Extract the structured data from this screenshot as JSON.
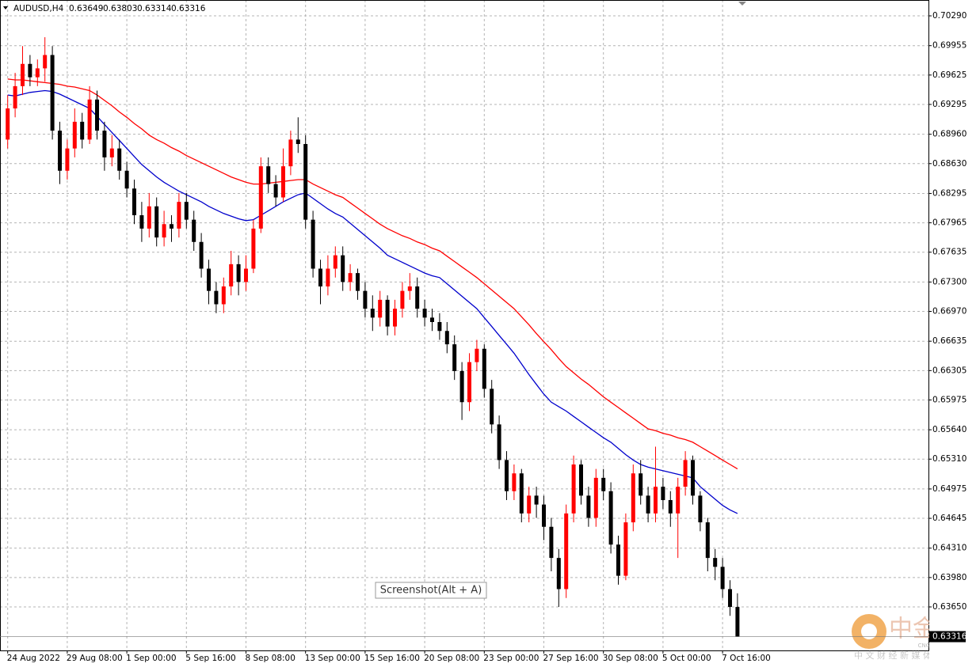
{
  "chart_data": {
    "type": "candlestick",
    "title": "AUDUSD,H4",
    "categories": [
      "24 Aug 2022",
      null,
      null,
      null,
      null,
      null,
      null,
      null,
      "29 Aug 08:00",
      null,
      null,
      null,
      null,
      null,
      null,
      null,
      "1 Sep 00:00",
      null,
      null,
      null,
      null,
      null,
      null,
      null,
      "5 Sep 16:00",
      null,
      null,
      null,
      null,
      null,
      null,
      null,
      "8 Sep 08:00",
      null,
      null,
      null,
      null,
      null,
      null,
      null,
      "13 Sep 00:00",
      null,
      null,
      null,
      null,
      null,
      null,
      null,
      "15 Sep 16:00",
      null,
      null,
      null,
      null,
      null,
      null,
      null,
      "20 Sep 08:00",
      null,
      null,
      null,
      null,
      null,
      null,
      null,
      "23 Sep 00:00",
      null,
      null,
      null,
      null,
      null,
      null,
      null,
      "27 Sep 16:00",
      null,
      null,
      null,
      null,
      null,
      null,
      null,
      "30 Sep 08:00",
      null,
      null,
      null,
      null,
      null,
      null,
      null,
      "5 Oct 00:00",
      null,
      null,
      null,
      null,
      null,
      null,
      null,
      "7 Oct 16:00",
      null,
      null
    ],
    "open": [
      0.689,
      0.6925,
      0.695,
      0.6975,
      0.696,
      0.697,
      0.6985,
      0.69,
      0.6855,
      0.688,
      0.691,
      0.689,
      0.6935,
      0.69,
      0.687,
      0.688,
      0.6855,
      0.6835,
      0.6805,
      0.679,
      0.6815,
      0.678,
      0.6795,
      0.679,
      0.682,
      0.68,
      0.6775,
      0.6745,
      0.672,
      0.6705,
      0.6725,
      0.675,
      0.673,
      0.6745,
      0.679,
      0.686,
      0.684,
      0.6825,
      0.686,
      0.689,
      0.6885,
      0.68,
      0.6745,
      0.6725,
      0.6745,
      0.676,
      0.673,
      0.674,
      0.672,
      0.67,
      0.669,
      0.671,
      0.668,
      0.67,
      0.672,
      0.6725,
      0.67,
      0.669,
      0.6685,
      0.6675,
      0.666,
      0.663,
      0.6595,
      0.664,
      0.6655,
      0.661,
      0.657,
      0.653,
      0.6495,
      0.6515,
      0.647,
      0.649,
      0.648,
      0.6455,
      0.642,
      0.6385,
      0.647,
      0.6525,
      0.649,
      0.6465,
      0.651,
      0.6495,
      0.6435,
      0.64,
      0.646,
      0.6515,
      0.649,
      0.647,
      0.65,
      0.6485,
      0.647,
      0.65,
      0.653,
      0.649,
      0.646,
      0.642,
      0.641,
      0.6385,
      0.63649
    ],
    "high": [
      0.694,
      0.6965,
      0.6995,
      0.6985,
      0.698,
      0.7005,
      0.6995,
      0.691,
      0.689,
      0.6925,
      0.692,
      0.695,
      0.6945,
      0.691,
      0.6895,
      0.689,
      0.6865,
      0.6845,
      0.682,
      0.683,
      0.6825,
      0.681,
      0.6805,
      0.683,
      0.683,
      0.681,
      0.6785,
      0.6755,
      0.673,
      0.6735,
      0.6765,
      0.676,
      0.676,
      0.68,
      0.687,
      0.687,
      0.685,
      0.688,
      0.69,
      0.6915,
      0.6895,
      0.681,
      0.6755,
      0.676,
      0.677,
      0.677,
      0.675,
      0.6745,
      0.673,
      0.6715,
      0.672,
      0.6715,
      0.671,
      0.673,
      0.674,
      0.6735,
      0.671,
      0.67,
      0.6695,
      0.6685,
      0.667,
      0.664,
      0.665,
      0.6665,
      0.666,
      0.662,
      0.658,
      0.654,
      0.6525,
      0.652,
      0.65,
      0.65,
      0.649,
      0.6465,
      0.643,
      0.648,
      0.6535,
      0.653,
      0.65,
      0.652,
      0.652,
      0.6505,
      0.6445,
      0.647,
      0.6525,
      0.653,
      0.65,
      0.6545,
      0.651,
      0.6495,
      0.651,
      0.654,
      0.6535,
      0.6495,
      0.6465,
      0.643,
      0.642,
      0.6395,
      0.63803
    ],
    "low": [
      0.688,
      0.6915,
      0.694,
      0.695,
      0.695,
      0.6955,
      0.689,
      0.684,
      0.6845,
      0.687,
      0.688,
      0.6885,
      0.689,
      0.6855,
      0.686,
      0.6845,
      0.6825,
      0.6795,
      0.6775,
      0.678,
      0.677,
      0.677,
      0.6775,
      0.678,
      0.679,
      0.6765,
      0.6735,
      0.6705,
      0.6695,
      0.6695,
      0.6715,
      0.6715,
      0.672,
      0.674,
      0.6785,
      0.683,
      0.6815,
      0.682,
      0.685,
      0.6875,
      0.679,
      0.6735,
      0.6705,
      0.6715,
      0.6735,
      0.672,
      0.672,
      0.671,
      0.669,
      0.6675,
      0.668,
      0.667,
      0.667,
      0.669,
      0.671,
      0.669,
      0.668,
      0.6675,
      0.6665,
      0.665,
      0.662,
      0.6575,
      0.6585,
      0.663,
      0.66,
      0.656,
      0.652,
      0.6485,
      0.6485,
      0.646,
      0.646,
      0.6465,
      0.644,
      0.6405,
      0.6365,
      0.6375,
      0.646,
      0.648,
      0.6455,
      0.6455,
      0.6485,
      0.6425,
      0.639,
      0.6395,
      0.645,
      0.648,
      0.646,
      0.646,
      0.6475,
      0.6455,
      0.642,
      0.649,
      0.648,
      0.645,
      0.6405,
      0.6395,
      0.6375,
      0.6355,
      0.63314
    ],
    "close": [
      0.6925,
      0.695,
      0.6975,
      0.696,
      0.697,
      0.6985,
      0.69,
      0.6855,
      0.688,
      0.691,
      0.689,
      0.6935,
      0.69,
      0.687,
      0.688,
      0.6855,
      0.6835,
      0.6805,
      0.679,
      0.6815,
      0.678,
      0.6795,
      0.679,
      0.682,
      0.68,
      0.6775,
      0.6745,
      0.672,
      0.6705,
      0.6725,
      0.675,
      0.673,
      0.6745,
      0.679,
      0.686,
      0.684,
      0.6825,
      0.686,
      0.689,
      0.6885,
      0.68,
      0.6745,
      0.6725,
      0.6745,
      0.676,
      0.673,
      0.674,
      0.672,
      0.67,
      0.669,
      0.671,
      0.668,
      0.67,
      0.672,
      0.6725,
      0.67,
      0.669,
      0.6685,
      0.6675,
      0.666,
      0.663,
      0.6595,
      0.664,
      0.6655,
      0.661,
      0.657,
      0.653,
      0.6495,
      0.6515,
      0.647,
      0.649,
      0.648,
      0.6455,
      0.642,
      0.6385,
      0.647,
      0.6525,
      0.649,
      0.6465,
      0.651,
      0.6495,
      0.6435,
      0.64,
      0.646,
      0.6515,
      0.649,
      0.647,
      0.65,
      0.6485,
      0.647,
      0.65,
      0.653,
      0.649,
      0.646,
      0.642,
      0.641,
      0.6385,
      0.6365,
      0.63316
    ],
    "up_color": "#ff0000",
    "down_color": "#000000",
    "lines": [
      {
        "color": "#ff0000",
        "values": [
          0.6958,
          0.6957,
          0.6957,
          0.6956,
          0.6955,
          0.6954,
          0.6953,
          0.6952,
          0.695,
          0.6949,
          0.6947,
          0.6945,
          0.694,
          0.6934,
          0.6928,
          0.6921,
          0.6915,
          0.6908,
          0.6902,
          0.6895,
          0.689,
          0.6886,
          0.6881,
          0.6877,
          0.6872,
          0.6868,
          0.6864,
          0.686,
          0.6856,
          0.6852,
          0.6848,
          0.6845,
          0.6842,
          0.684,
          0.684,
          0.6841,
          0.6842,
          0.6843,
          0.6844,
          0.6845,
          0.6845,
          0.684,
          0.6836,
          0.6832,
          0.6828,
          0.6825,
          0.6819,
          0.6813,
          0.6807,
          0.6801,
          0.6795,
          0.679,
          0.6786,
          0.6782,
          0.6779,
          0.6775,
          0.6772,
          0.6768,
          0.6765,
          0.6759,
          0.6753,
          0.6747,
          0.6741,
          0.6735,
          0.6728,
          0.6721,
          0.6714,
          0.6707,
          0.67,
          0.6691,
          0.6682,
          0.6672,
          0.6663,
          0.6654,
          0.6644,
          0.6635,
          0.6628,
          0.6621,
          0.6615,
          0.6608,
          0.6601,
          0.6595,
          0.6589,
          0.6583,
          0.6577,
          0.6571,
          0.6565,
          0.6563,
          0.656,
          0.6558,
          0.6555,
          0.6553,
          0.655,
          0.6545,
          0.654,
          0.6535,
          0.653,
          0.6525,
          0.652
        ]
      },
      {
        "color": "#0000cc",
        "values": [
          0.694,
          0.6939,
          0.6941,
          0.6943,
          0.6944,
          0.6945,
          0.6944,
          0.6941,
          0.6937,
          0.6933,
          0.6929,
          0.6925,
          0.6916,
          0.6907,
          0.6898,
          0.6889,
          0.688,
          0.6871,
          0.6862,
          0.6855,
          0.6848,
          0.6842,
          0.6837,
          0.6832,
          0.6828,
          0.6824,
          0.682,
          0.6815,
          0.6811,
          0.6807,
          0.6804,
          0.6801,
          0.6799,
          0.68,
          0.6805,
          0.681,
          0.6815,
          0.682,
          0.6824,
          0.6828,
          0.683,
          0.6824,
          0.6818,
          0.6812,
          0.6807,
          0.6803,
          0.6796,
          0.6789,
          0.6782,
          0.6775,
          0.6768,
          0.676,
          0.6756,
          0.6752,
          0.6748,
          0.6744,
          0.674,
          0.6737,
          0.6735,
          0.6728,
          0.6721,
          0.6714,
          0.6707,
          0.67,
          0.669,
          0.668,
          0.667,
          0.666,
          0.665,
          0.6638,
          0.6626,
          0.6615,
          0.6604,
          0.6595,
          0.659,
          0.6585,
          0.6579,
          0.6573,
          0.6567,
          0.6561,
          0.6555,
          0.655,
          0.6543,
          0.6536,
          0.653,
          0.6525,
          0.6522,
          0.652,
          0.6518,
          0.6516,
          0.6514,
          0.6512,
          0.651,
          0.65,
          0.6493,
          0.6486,
          0.6479,
          0.6474,
          0.647
        ]
      }
    ],
    "ylim": [
      0.63161,
      0.70468
    ],
    "yticks": [
      {
        "value": 0.7029,
        "label": "0.70290"
      },
      0.69955,
      0.69625,
      0.69295,
      {
        "value": 0.6896,
        "label": "0.68960"
      },
      {
        "value": 0.6863,
        "label": "0.68630"
      },
      0.68295,
      0.67965,
      0.67635,
      {
        "value": 0.673,
        "label": "0.67300"
      },
      {
        "value": 0.6697,
        "label": "0.66970"
      },
      0.66635,
      0.66305,
      0.65975,
      {
        "value": 0.6564,
        "label": "0.65640"
      },
      {
        "value": 0.6531,
        "label": "0.65310"
      },
      0.64975,
      0.64645,
      {
        "value": 0.6431,
        "label": "0.64310"
      },
      {
        "value": 0.6398,
        "label": "0.63980"
      },
      {
        "value": 0.6365,
        "label": "0.63650"
      }
    ],
    "grid": true,
    "tooltip": "Screenshot(Alt + A)",
    "watermark": {
      "name": "中金网",
      "site": "CNGOLD.COM.CN",
      "slogan": "中 文 财 经 新 媒 体"
    }
  }
}
